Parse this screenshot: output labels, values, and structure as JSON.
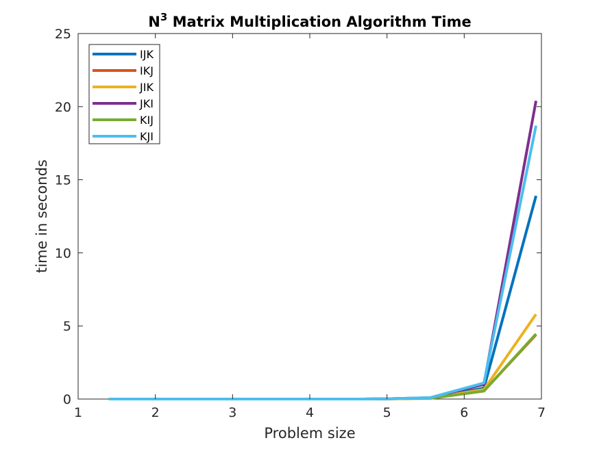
{
  "chart_data": {
    "type": "line",
    "title_main": "N",
    "title_sup": "3",
    "title_rest": " Matrix Multiplication Algorithm Time",
    "xlabel": "Problem size",
    "ylabel": "time in seconds",
    "xlim": [
      1,
      7
    ],
    "ylim": [
      0,
      25
    ],
    "xticks": [
      1,
      2,
      3,
      4,
      5,
      6,
      7
    ],
    "yticks": [
      0,
      5,
      10,
      15,
      20,
      25
    ],
    "xtick_labels": [
      "1",
      "2",
      "3",
      "4",
      "5",
      "6",
      "7"
    ],
    "ytick_labels": [
      "0",
      "5",
      "10",
      "15",
      "20",
      "25"
    ],
    "grid": false,
    "legend_position": "top-left",
    "x": [
      1.398,
      1.699,
      2.0,
      2.301,
      2.699,
      3.0,
      3.301,
      3.699,
      4.0,
      4.301,
      4.699,
      5.0,
      5.56,
      6.255,
      6.93
    ],
    "series": [
      {
        "name": "IJK",
        "color": "#0072bd",
        "values": [
          0,
          0,
          0,
          0,
          0,
          0,
          0,
          0,
          0,
          0,
          0,
          0.02,
          0.07,
          0.75,
          13.9
        ]
      },
      {
        "name": "IKJ",
        "color": "#d95319",
        "values": [
          0,
          0,
          0,
          0,
          0,
          0,
          0,
          0,
          0,
          0,
          0,
          0.01,
          0.05,
          0.55,
          4.4
        ]
      },
      {
        "name": "JIK",
        "color": "#edb120",
        "values": [
          0,
          0,
          0,
          0,
          0,
          0,
          0,
          0,
          0,
          0,
          0,
          0.01,
          0.06,
          0.65,
          5.8
        ]
      },
      {
        "name": "JKI",
        "color": "#7e2f8e",
        "values": [
          0,
          0,
          0,
          0,
          0,
          0,
          0,
          0,
          0,
          0,
          0,
          0.02,
          0.09,
          1.0,
          20.4
        ]
      },
      {
        "name": "KIJ",
        "color": "#77ac30",
        "values": [
          0,
          0,
          0,
          0,
          0,
          0,
          0,
          0,
          0,
          0,
          0,
          0.01,
          0.05,
          0.55,
          4.45
        ]
      },
      {
        "name": "KJI",
        "color": "#4dbeee",
        "values": [
          0,
          0,
          0,
          0,
          0,
          0,
          0,
          0,
          0,
          0,
          0,
          0.02,
          0.1,
          1.1,
          18.7
        ]
      }
    ]
  }
}
